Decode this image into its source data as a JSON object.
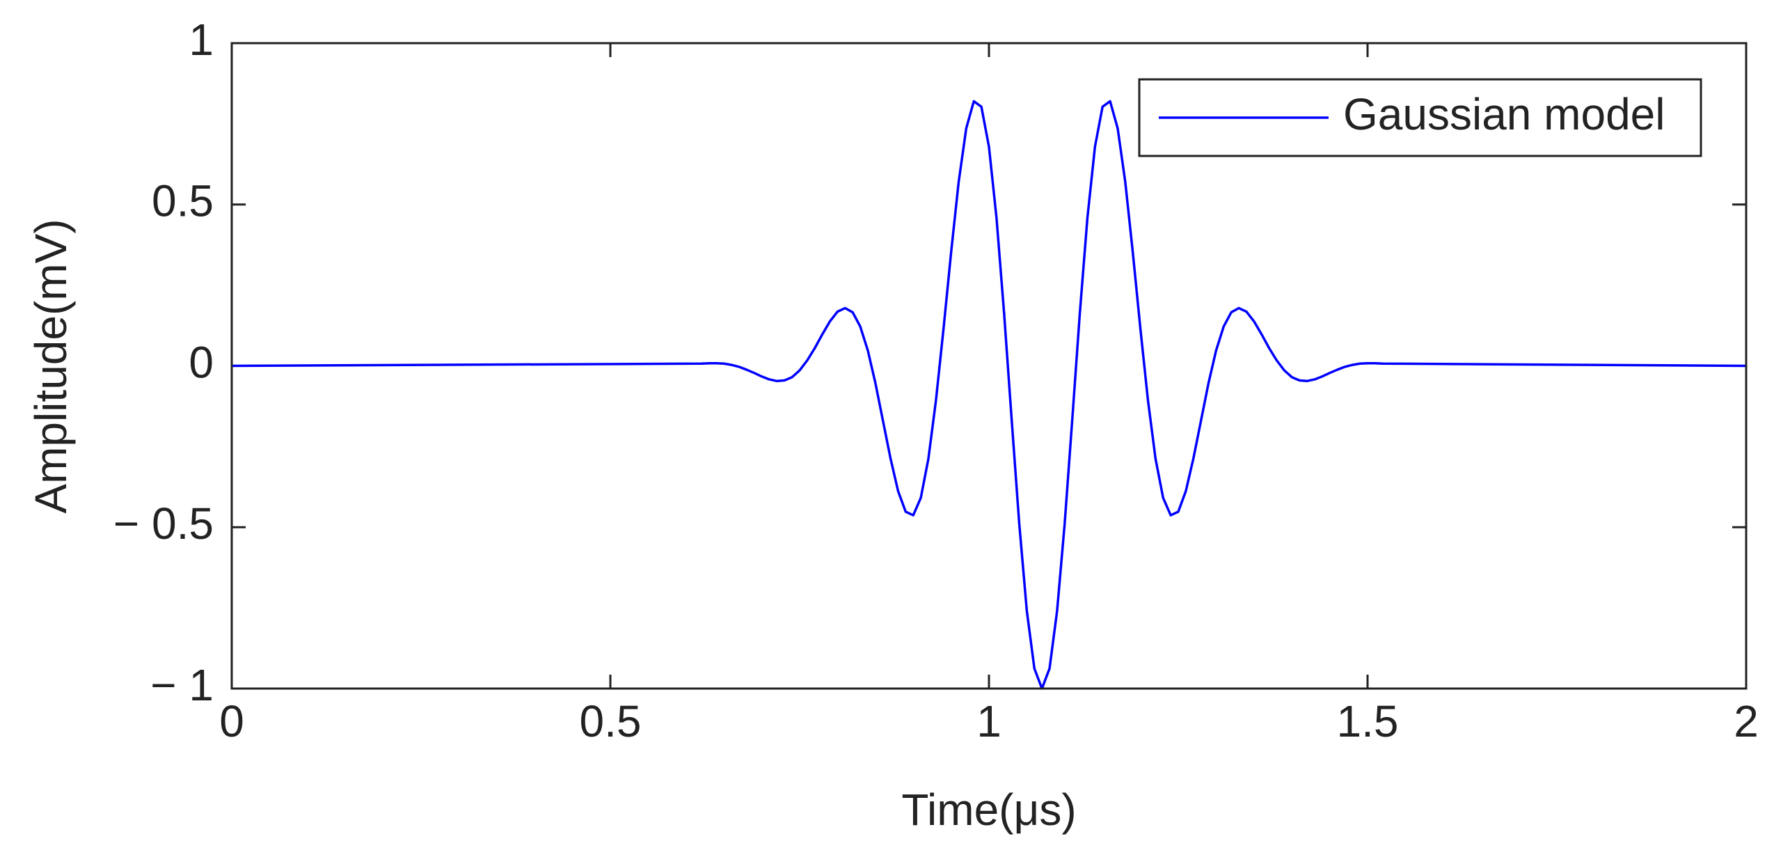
{
  "chart_data": {
    "type": "line",
    "xlabel": "Time(μs)",
    "ylabel": "Amplitude(mV)",
    "x": [
      0,
      0.62,
      0.63,
      0.64,
      0.65,
      0.66,
      0.67,
      0.68,
      0.69,
      0.7,
      0.71,
      0.72,
      0.73,
      0.74,
      0.75,
      0.76,
      0.77,
      0.78,
      0.79,
      0.8,
      0.81,
      0.82,
      0.83,
      0.84,
      0.85,
      0.86,
      0.87,
      0.88,
      0.89,
      0.9,
      0.91,
      0.92,
      0.93,
      0.94,
      0.95,
      0.96,
      0.97,
      0.98,
      0.99,
      1.0,
      1.01,
      1.02,
      1.03,
      1.04,
      1.05,
      1.06,
      1.07,
      1.08,
      1.09,
      1.1,
      1.11,
      1.12,
      1.13,
      1.14,
      1.15,
      1.16,
      1.17,
      1.18,
      1.19,
      1.2,
      1.21,
      1.22,
      1.23,
      1.24,
      1.25,
      1.26,
      1.27,
      1.28,
      1.29,
      1.3,
      1.31,
      1.32,
      1.33,
      1.34,
      1.35,
      1.36,
      1.37,
      1.38,
      1.39,
      1.4,
      1.41,
      1.42,
      1.43,
      1.44,
      1.45,
      1.46,
      1.47,
      1.48,
      1.49,
      1.5,
      1.51,
      1.52,
      2
    ],
    "series": [
      {
        "name": "Gaussian model",
        "color": "#0000ff",
        "values": [
          0,
          0.007,
          0.008,
          0.008,
          0.007,
          0.003,
          -0.003,
          -0.012,
          -0.022,
          -0.033,
          -0.042,
          -0.047,
          -0.045,
          -0.035,
          -0.014,
          0.017,
          0.055,
          0.098,
          0.138,
          0.168,
          0.179,
          0.166,
          0.122,
          0.048,
          -0.053,
          -0.17,
          -0.287,
          -0.388,
          -0.452,
          -0.463,
          -0.409,
          -0.288,
          -0.107,
          0.115,
          0.351,
          0.57,
          0.736,
          0.82,
          0.803,
          0.679,
          0.458,
          0.163,
          -0.167,
          -0.489,
          -0.759,
          -0.938,
          -1,
          -0.938,
          -0.759,
          -0.489,
          -0.167,
          0.163,
          0.458,
          0.679,
          0.803,
          0.82,
          0.736,
          0.57,
          0.351,
          0.115,
          -0.107,
          -0.288,
          -0.409,
          -0.463,
          -0.452,
          -0.388,
          -0.287,
          -0.17,
          -0.053,
          0.048,
          0.122,
          0.166,
          0.179,
          0.168,
          0.138,
          0.098,
          0.055,
          0.017,
          -0.014,
          -0.035,
          -0.045,
          -0.047,
          -0.042,
          -0.033,
          -0.022,
          -0.012,
          -0.003,
          0.003,
          0.007,
          0.008,
          0.008,
          0.007,
          0
        ]
      }
    ],
    "xlim": [
      0,
      2
    ],
    "xticks": [
      0,
      0.5,
      1,
      1.5,
      2
    ],
    "ylim": [
      -1,
      1
    ],
    "yticks": [
      {
        "value": -1,
        "label": "− 1"
      },
      {
        "value": -0.5,
        "label": "− 0.5"
      },
      0,
      0.5,
      1
    ],
    "grid": false,
    "legend": "upper right"
  }
}
